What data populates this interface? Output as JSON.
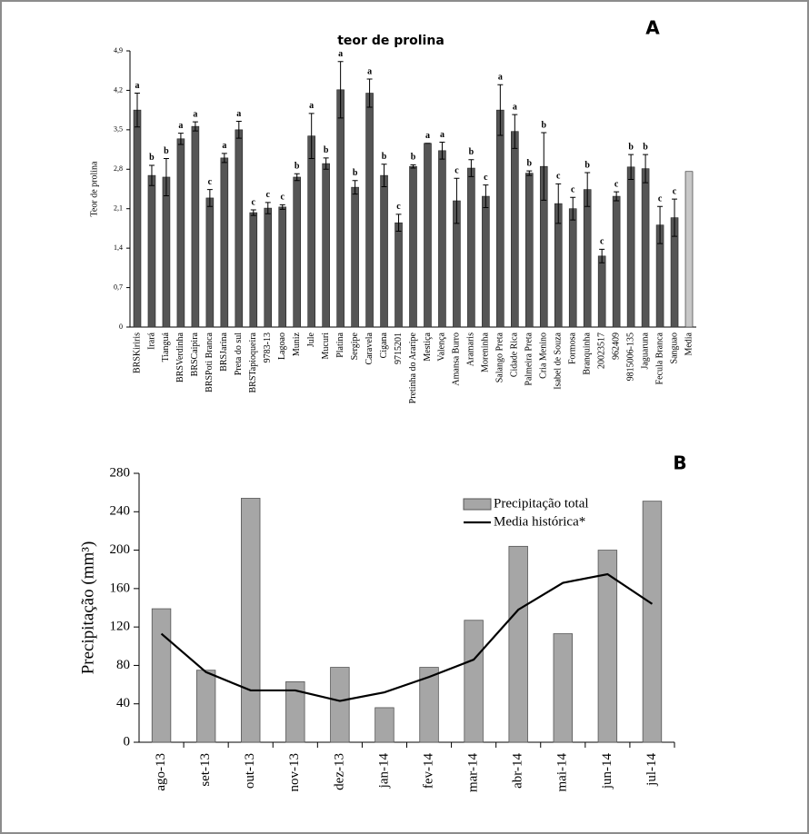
{
  "chart_data": [
    {
      "type": "bar",
      "title": "teor de prolina",
      "ylabel": "Teor de prolina",
      "panel": "A",
      "categories": [
        "BRSKiriris",
        "Irará",
        "Tianguá",
        "BRSVerdinha",
        "BRSCaipira",
        "BRSPoti Branca",
        "BRSJarina",
        "Preta do sul",
        "BRSTapioqueira",
        "9783-13",
        "Lagoao",
        "Muniz",
        "Jule",
        "Mucuri",
        "Platina",
        "Sergipe",
        "Caravela",
        "Cigana",
        "9715201",
        "Pretinha do Araripe",
        "Mestiça",
        "Valença",
        "Amansa Burro",
        "Aramaris",
        "Moreninha",
        "Salango Preta",
        "Cidade Rica",
        "Palmeira Preta",
        "Cria Menino",
        "Isabel de Souza",
        "Formosa",
        "Branquinha",
        "20023517",
        "962409",
        "9815006-135",
        "Jaguaruna",
        "Fecula Branca",
        "Sanguao",
        "Media"
      ],
      "values": [
        3.85,
        2.69,
        2.66,
        3.34,
        3.56,
        2.29,
        3.0,
        3.5,
        2.03,
        2.11,
        2.13,
        2.66,
        3.39,
        2.9,
        4.21,
        2.48,
        4.15,
        2.69,
        1.85,
        2.85,
        3.26,
        3.13,
        2.24,
        2.82,
        2.32,
        3.85,
        3.47,
        2.73,
        2.85,
        2.19,
        2.1,
        2.44,
        1.26,
        2.32,
        2.84,
        2.81,
        1.81,
        1.94,
        2.76
      ],
      "errors": [
        0.3,
        0.18,
        0.33,
        0.1,
        0.08,
        0.15,
        0.08,
        0.15,
        0.05,
        0.1,
        0.04,
        0.06,
        0.4,
        0.1,
        0.5,
        0.12,
        0.25,
        0.2,
        0.15,
        0.03,
        0.0,
        0.15,
        0.4,
        0.15,
        0.2,
        0.45,
        0.3,
        0.04,
        0.6,
        0.35,
        0.2,
        0.3,
        0.12,
        0.08,
        0.22,
        0.25,
        0.33,
        0.33,
        null
      ],
      "letters": [
        "a",
        "b",
        "b",
        "a",
        "a",
        "c",
        "a",
        "a",
        "c",
        "c",
        "c",
        "b",
        "a",
        "b",
        "a",
        "b",
        "a",
        "b",
        "c",
        "b",
        "a",
        "a",
        "c",
        "b",
        "c",
        "a",
        "a",
        "b",
        "b",
        "c",
        "c",
        "b",
        "c",
        "c",
        "b",
        "b",
        "c",
        "c",
        null
      ],
      "colors": [
        "#555555",
        "#555555",
        "#555555",
        "#555555",
        "#555555",
        "#555555",
        "#555555",
        "#555555",
        "#555555",
        "#555555",
        "#555555",
        "#555555",
        "#555555",
        "#555555",
        "#555555",
        "#555555",
        "#555555",
        "#555555",
        "#555555",
        "#555555",
        "#555555",
        "#555555",
        "#555555",
        "#555555",
        "#555555",
        "#555555",
        "#555555",
        "#555555",
        "#555555",
        "#555555",
        "#555555",
        "#555555",
        "#555555",
        "#555555",
        "#555555",
        "#555555",
        "#555555",
        "#555555",
        "#c8c8c8"
      ],
      "ylim": [
        0,
        4.9
      ],
      "yticks": [
        0,
        {
          "value": 0.7,
          "label": "0,7"
        },
        {
          "value": 1.4,
          "label": "1,4"
        },
        {
          "value": 2.1,
          "label": "2,1"
        },
        {
          "value": 2.8,
          "label": "2,8"
        },
        {
          "value": 3.5,
          "label": "3,5"
        },
        {
          "value": 4.2,
          "label": "4,2"
        },
        {
          "value": 4.9,
          "label": "4,9"
        }
      ]
    },
    {
      "type": "combo",
      "panel": "B",
      "ylabel": "Precipitação (mm³)",
      "categories": [
        "ago-13",
        "set-13",
        "out-13",
        "nov-13",
        "dez-13",
        "jan-14",
        "fev-14",
        "mar-14",
        "abr-14",
        "mai-14",
        "jun-14",
        "jul-14"
      ],
      "series": [
        {
          "name": "Precipitação total",
          "kind": "bar",
          "color": "#a6a6a6",
          "values": [
            139,
            75,
            254,
            63,
            78,
            36,
            78,
            127,
            204,
            113,
            200,
            251
          ]
        },
        {
          "name": "Media histórica*",
          "kind": "line",
          "color": "#000000",
          "values": [
            113,
            73,
            54,
            54,
            43,
            52,
            68,
            86,
            138,
            166,
            175,
            144
          ]
        }
      ],
      "ylim": [
        0,
        280
      ],
      "yticks": [
        0,
        40,
        80,
        120,
        160,
        200,
        240,
        280
      ],
      "legend": "upper-right"
    }
  ]
}
